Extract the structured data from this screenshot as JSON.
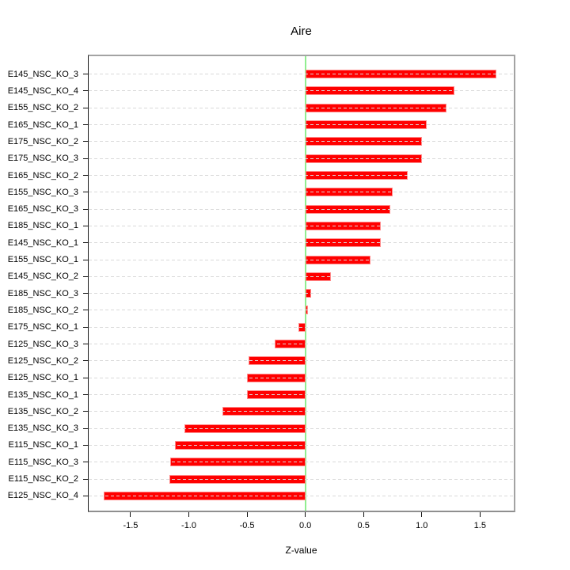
{
  "title": "Aire",
  "chart_data": {
    "type": "bar",
    "orientation": "horizontal",
    "title": "Aire",
    "xlabel": "Z-value",
    "ylabel": "",
    "xlim": [
      -1.86,
      1.79
    ],
    "xticks": [
      -1.5,
      -1.0,
      -0.5,
      0.0,
      0.5,
      1.0,
      1.5
    ],
    "grid": "dashed-horizontal-per-row",
    "zero_line": true,
    "legend": "none",
    "categories": [
      "E145_NSC_KO_3",
      "E145_NSC_KO_4",
      "E155_NSC_KO_2",
      "E165_NSC_KO_1",
      "E175_NSC_KO_2",
      "E175_NSC_KO_3",
      "E165_NSC_KO_2",
      "E155_NSC_KO_3",
      "E165_NSC_KO_3",
      "E185_NSC_KO_1",
      "E145_NSC_KO_1",
      "E155_NSC_KO_1",
      "E145_NSC_KO_2",
      "E185_NSC_KO_3",
      "E185_NSC_KO_2",
      "E175_NSC_KO_1",
      "E125_NSC_KO_3",
      "E125_NSC_KO_2",
      "E125_NSC_KO_1",
      "E135_NSC_KO_1",
      "E135_NSC_KO_2",
      "E135_NSC_KO_3",
      "E115_NSC_KO_1",
      "E115_NSC_KO_3",
      "E115_NSC_KO_2",
      "E125_NSC_KO_4"
    ],
    "values": [
      1.64,
      1.28,
      1.21,
      1.04,
      1.0,
      1.0,
      0.88,
      0.75,
      0.73,
      0.65,
      0.65,
      0.56,
      0.22,
      0.05,
      0.02,
      -0.06,
      -0.26,
      -0.49,
      -0.5,
      -0.5,
      -0.71,
      -1.04,
      -1.12,
      -1.16,
      -1.17,
      -1.73
    ],
    "colors": {
      "bar_fill": "#ff0000",
      "bar_border": "#ff8c8c",
      "zero_line": "#90ee90",
      "grid_line": "#d9d9d9",
      "box_border": "#a3a3a3",
      "axis_line": "#1a1a1a",
      "text": "#000000",
      "background": "#ffffff"
    }
  }
}
